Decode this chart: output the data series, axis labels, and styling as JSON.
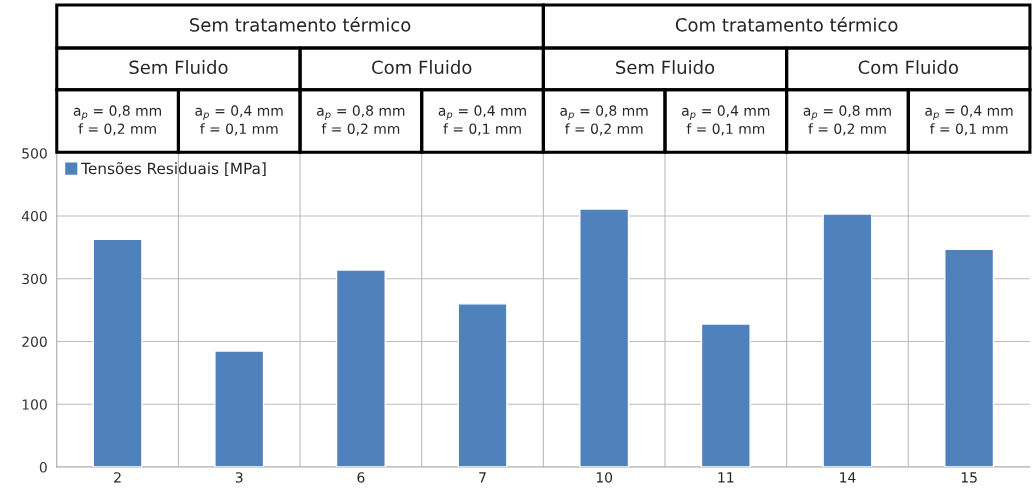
{
  "chart_data": {
    "type": "bar",
    "categories": [
      "2",
      "3",
      "6",
      "7",
      "10",
      "11",
      "14",
      "15"
    ],
    "series": [
      {
        "name": "Tensões Residuais [MPa]",
        "color": "#4f81bd",
        "values": [
          363,
          185,
          314,
          260,
          411,
          228,
          403,
          347
        ]
      }
    ],
    "ylim": [
      0,
      500
    ],
    "yticks": [
      0,
      100,
      200,
      300,
      400,
      500
    ],
    "grid": true,
    "legend": "top left",
    "annotations": [
      "Sem tratamento térmico",
      "Com tratamento térmico",
      "Sem Fluido",
      "Com Fluido",
      "Sem Fluido",
      "Com Fluido",
      "a$_{p}$ = 0,8 mm\nf = 0,2 mm",
      "a$_{p}$ = 0,4 mm\nf = 0,1 mm",
      "a$_{p}$ = 0,8 mm\nf = 0,2 mm",
      "a$_{p}$ = 0,4 mm\nf = 0,1 mm",
      "a$_{p}$ = 0,8 mm\nf = 0,2 mm",
      "a$_{p}$ = 0,4 mm\nf = 0,1 mm",
      "a$_{p}$ = 0,8 mm\nf = 0,2 mm",
      "a$_{p}$ = 0,4 mm\nf = 0,1 mm"
    ]
  }
}
